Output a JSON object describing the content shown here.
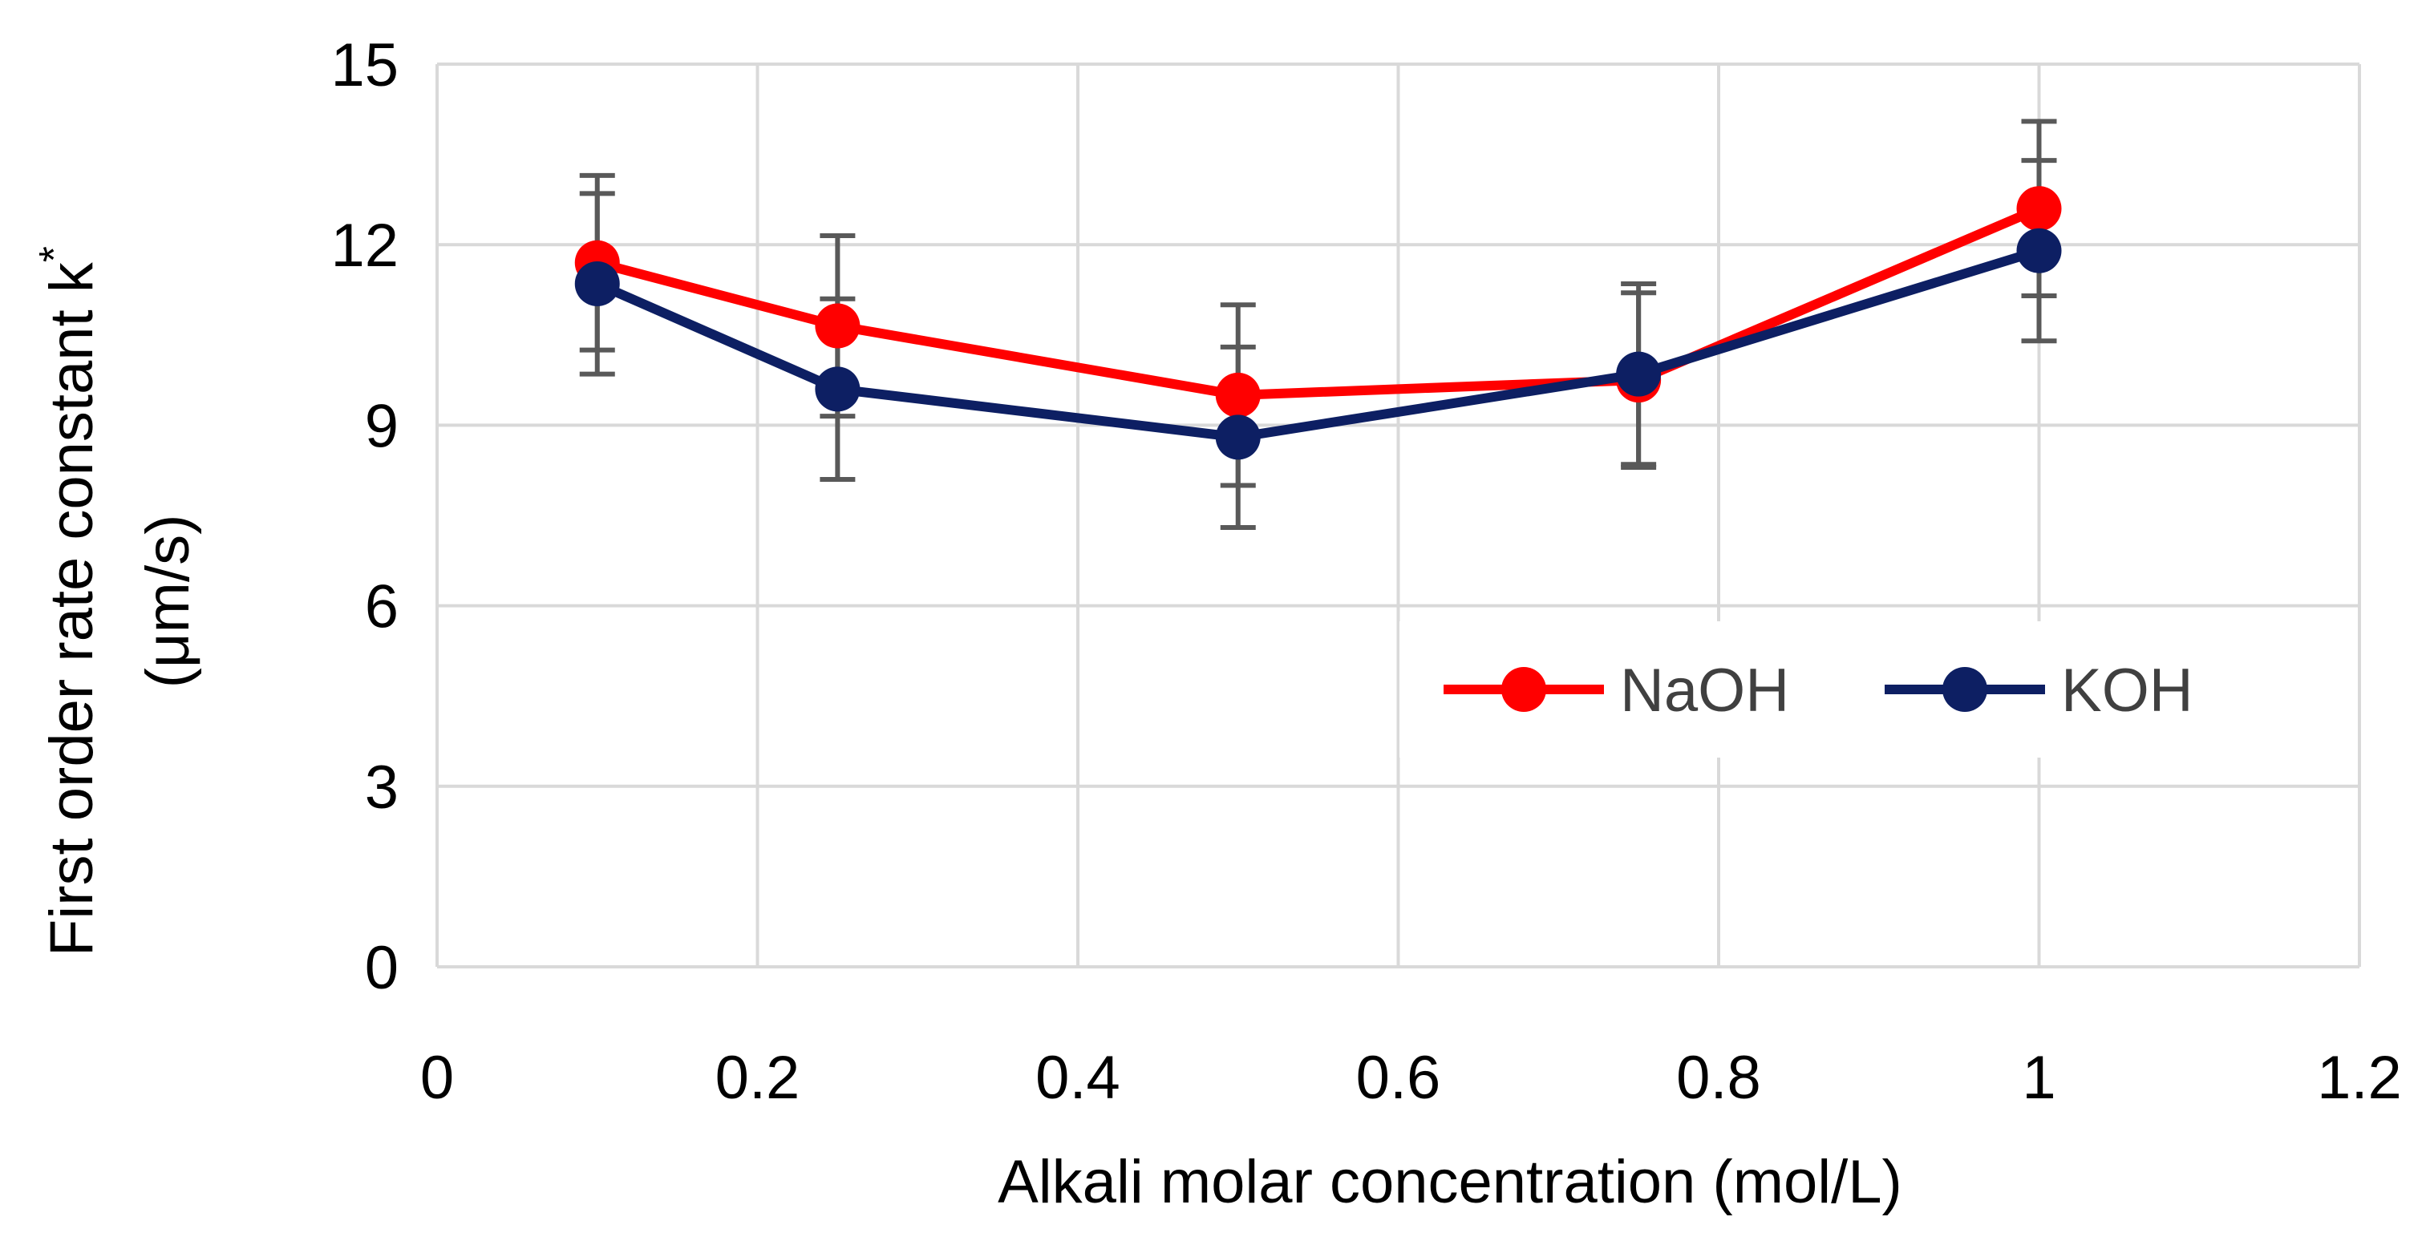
{
  "chart_data": {
    "type": "line",
    "title": "",
    "xlabel": "Alkali molar concentration (mol/L)",
    "ylabel_line1": "First order rate constant k",
    "ylabel_superscript": "*",
    "ylabel_line2": "(μm/s)",
    "xlim": [
      0,
      1.2
    ],
    "ylim": [
      0,
      15
    ],
    "xticks": [
      0,
      0.2,
      0.4,
      0.6,
      0.8,
      1,
      1.2
    ],
    "xtick_labels": [
      "0",
      "0.2",
      "0.4",
      "0.6",
      "0.8",
      "1",
      "1.2"
    ],
    "yticks": [
      0,
      3,
      6,
      9,
      12,
      15
    ],
    "ytick_labels": [
      "0",
      "3",
      "6",
      "9",
      "12",
      "15"
    ],
    "grid": true,
    "legend_position": "right",
    "series": [
      {
        "name": "NaOH",
        "color": "#ff0000",
        "x": [
          0.1,
          0.25,
          0.5,
          0.75,
          1.0
        ],
        "y": [
          11.7,
          10.65,
          9.5,
          9.75,
          12.6
        ],
        "err": [
          1.45,
          1.5,
          1.5,
          1.45,
          1.45
        ]
      },
      {
        "name": "KOH",
        "color": "#0d1f63",
        "x": [
          0.1,
          0.25,
          0.5,
          0.75,
          1.0
        ],
        "y": [
          11.35,
          9.6,
          8.8,
          9.85,
          11.9
        ],
        "err": [
          1.5,
          1.5,
          1.5,
          1.5,
          1.5
        ]
      }
    ],
    "errorbar_color": "#595959"
  }
}
